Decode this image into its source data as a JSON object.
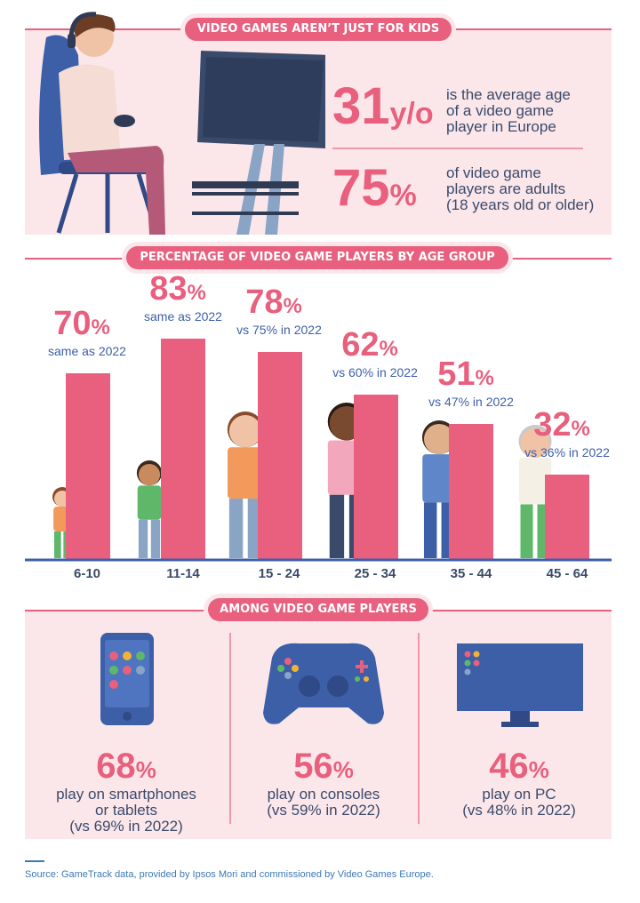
{
  "header": {
    "title": "VIDEO GAMES AREN’T JUST FOR KIDS"
  },
  "stats": [
    {
      "value": "31",
      "unit": "y/o",
      "text": "is the average age\nof a video game\nplayer in Europe"
    },
    {
      "value": "75",
      "unit": "%",
      "text": "of video game\nplayers are adults\n(18 years old or older)"
    }
  ],
  "chart_section": {
    "title": "PERCENTAGE OF VIDEO GAME PLAYERS BY AGE GROUP"
  },
  "chart_data": {
    "type": "bar",
    "title": "PERCENTAGE OF VIDEO GAME PLAYERS BY AGE GROUP",
    "categories": [
      "6-10",
      "11-14",
      "15 - 24",
      "25 - 34",
      "35 - 44",
      "45 - 64"
    ],
    "values": [
      70,
      83,
      78,
      62,
      51,
      32
    ],
    "value_labels": [
      "70",
      "83",
      "78",
      "62",
      "51",
      "32"
    ],
    "unit": "%",
    "comparisons": [
      "same as 2022",
      "same as 2022",
      "vs 75% in 2022",
      "vs 60% in 2022",
      "vs 47% in 2022",
      "vs 36% in 2022"
    ],
    "bar_color": "#e8607e"
  },
  "devices_section": {
    "title": "AMONG VIDEO GAME PLAYERS"
  },
  "devices": [
    {
      "icon": "smartphone-icon",
      "value": "68",
      "unit": "%",
      "text": "play on smartphones\nor tablets\n(vs 69% in 2022)"
    },
    {
      "icon": "gamepad-icon",
      "value": "56",
      "unit": "%",
      "text": "play on consoles\n(vs 59% in 2022)"
    },
    {
      "icon": "monitor-icon",
      "value": "46",
      "unit": "%",
      "text": "play on PC\n(vs 48% in 2022)"
    }
  ],
  "footer": {
    "source": "Source: GameTrack data, provided by Ipsos Mori and commissioned by Video Games Europe."
  },
  "colors": {
    "accent": "#e8607e",
    "navy": "#3a4a6b",
    "blue": "#3c5fa8",
    "panel": "#fbe7ea"
  }
}
